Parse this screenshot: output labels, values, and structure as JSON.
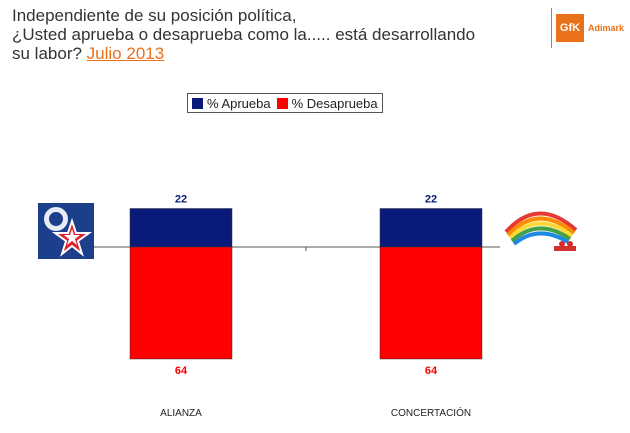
{
  "header": {
    "line1": "Independiente de su posición política,",
    "line2": "¿Usted aprueba o desaprueba como la..... está desarrollando",
    "line3_prefix": "su labor?",
    "line3_highlight": "Julio 2013"
  },
  "brand": {
    "mark": "GfK",
    "name": "Adimark",
    "color": "#e8711a"
  },
  "chart_data": {
    "type": "bar",
    "stacked": "diverging",
    "categories": [
      "ALIANZA",
      "CONCERTACIÓN"
    ],
    "series": [
      {
        "name": "% Aprueba",
        "color": "#0a1a7a",
        "values": [
          22,
          22
        ]
      },
      {
        "name": "% Desaprueba",
        "color": "#ff0000",
        "values": [
          64,
          64
        ]
      }
    ],
    "legend_position": "top-center",
    "grid": false
  }
}
